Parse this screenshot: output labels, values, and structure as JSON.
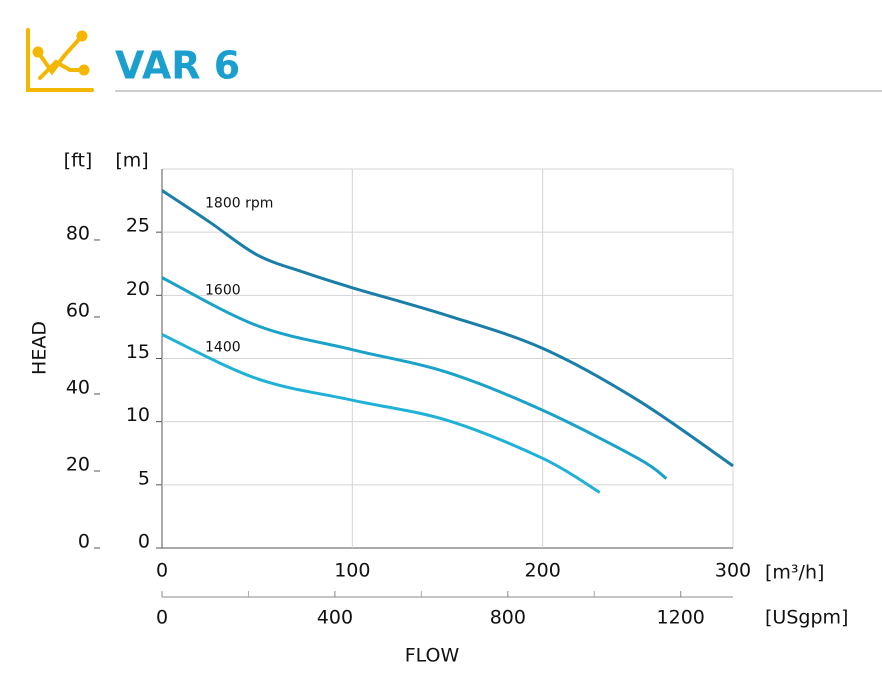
{
  "chart_data": {
    "type": "line",
    "title": "VAR 6",
    "y_label": "HEAD",
    "y_unit": "[m]",
    "y2_unit": "[ft]",
    "x_label": "FLOW",
    "x_unit": "[m³/h]",
    "x2_unit": "[USgpm]",
    "xlim": [
      0,
      300
    ],
    "xticks": [
      0,
      100,
      200,
      300
    ],
    "ylim": [
      0,
      30
    ],
    "yticks": [
      0,
      5,
      10,
      15,
      20,
      25
    ],
    "y2lim": [
      0,
      98.43
    ],
    "y2ticks": [
      0,
      20,
      40,
      60,
      80
    ],
    "x2lim": [
      0,
      1320.9
    ],
    "x2ticks": [
      0,
      400,
      800,
      1200
    ],
    "x2minor_ticks": [
      200,
      600,
      1000
    ],
    "grid": true,
    "series": [
      {
        "name": "1800 rpm",
        "color": "#1a7ea8",
        "x": [
          0,
          25,
          50,
          75,
          100,
          150,
          200,
          250,
          300
        ],
        "values": [
          28.3,
          25.8,
          23.2,
          21.8,
          20.6,
          18.4,
          15.8,
          11.7,
          6.5
        ]
      },
      {
        "name": "1600",
        "color": "#1ba2c8",
        "x": [
          0,
          50,
          100,
          150,
          200,
          250,
          265
        ],
        "values": [
          21.4,
          17.6,
          15.7,
          13.9,
          10.9,
          7.1,
          5.5
        ]
      },
      {
        "name": "1400",
        "color": "#20b2d6",
        "x": [
          0,
          50,
          100,
          150,
          200,
          230
        ],
        "values": [
          16.9,
          13.4,
          11.7,
          10.1,
          7.1,
          4.4
        ]
      }
    ]
  }
}
